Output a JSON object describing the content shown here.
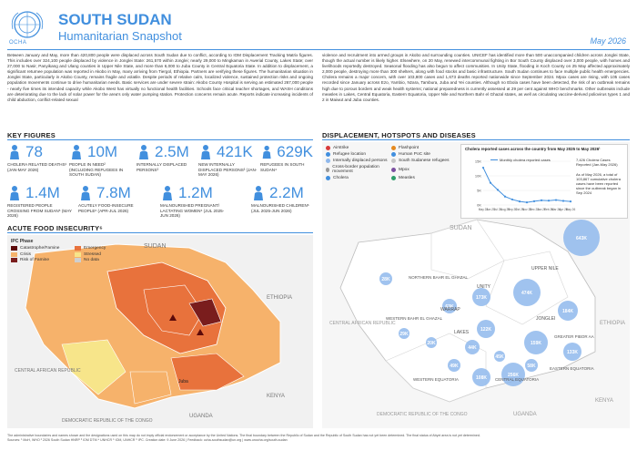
{
  "header": {
    "org": "OCHA",
    "title": "SOUTH SUDAN",
    "subtitle": "Humanitarian Snapshot",
    "date": "May 2026"
  },
  "intro": {
    "left": "Between January and May, more than 420,800 people were displaced across South Sudan due to conflict, according to IOM Displacement Tracking Matrix figures. This includes over 324,100 people displaced by violence in Jonglei State: 261,570 within Jonglei; nearly 29,000 to Mingkaman in Awerial County, Lakes State; over 27,000 to Nasir, Panyikang and Ulang counties in Upper Nile State, and more than 6,000 to Juba County in Central Equatoria State. In addition to displacement, a significant returnee population was reported in Akobo in May, many arriving from Tiergol, Ethiopia. Partners are verifying these figures. The humanitarian situation in Jonglei State, particularly in Akobo County, remains fragile and volatile. Despite periods of relative calm, localized violence, sustained protection risks and ongoing population movements continue to drive humanitarian needs. Basic services are under severe strain: Akobo County Hospital is serving an estimated 267,000 people - nearly five times its intended capacity while Akobo West has virtually no functional health facilities. Schools face critical teacher shortages, and WASH conditions are deteriorating due to the lack of solar power for the area's only water pumping station. Protection concerns remain acute. Reports indicate increasing incidents of child abduction, conflict-related sexual",
    "right": "violence and recruitment into armed groups in Akobo and surrounding counties. UNICEF has identified more than 500 unaccompanied children across Jonglei State, though the actual number is likely higher. Elsewhere, on 20 May, renewed intercommunal fighting in Bor South County displaced over 3,000 people, with homes and livelihoods reportedly destroyed. Seasonal flooding has also begun to affect communities. In Unity State, flooding in Koch County on 25 May affected approximately 2,000 people, destroying more than 300 shelters, along with food stocks and basic infrastructure. South Sudan continues to face multiple public health emergencies. Cholera remains a major concern, with over 103,800 cases and 1,673 deaths reported nationwide since September 2024. Mpox cases are rising, with 105 cases recorded since January across Ezo, Yambio, Nzara, Tambura, Juba and Yei counties. Although no Ebola cases have been detected, the risk of an outbreak remains high due to porous borders and weak health systems; national preparedness is currently assessed at 29 per cent against WHO benchmarks. Other outbreaks include measles in Lakes, Central Equatoria, Eastern Equatoria, Upper Nile and Northern Bahr el Ghazal states, as well as circulating vaccine-derived poliovirus types 1 and 2 in Maiwut and Juba counties."
  },
  "key_figures": {
    "title": "KEY FIGURES",
    "items": [
      {
        "value": "78",
        "label": "CHOLERA RELATED DEATHS¹ (Jan-May 2026)",
        "icon": "cholera-icon"
      },
      {
        "value": "10M",
        "label": "PEOPLE IN NEED² (including refugees in South Sudan)",
        "icon": "people-icon"
      },
      {
        "value": "2.5M",
        "label": "INTERNALLY DISPLACED PERSONS³",
        "icon": "idp-icon"
      },
      {
        "value": "421K",
        "label": "NEW INTERNALLY DISPLACED PERSONS³ (Jan-May 2026)",
        "icon": "new-idp-icon"
      },
      {
        "value": "629K",
        "label": "REFUGEES IN SOUTH SUDAN⁴",
        "icon": "refugee-icon"
      },
      {
        "value": "1.4M",
        "label": "REGISTERED PEOPLE CROSSING FROM SUDAN⁵ (May 2026)",
        "icon": "crossing-icon"
      },
      {
        "value": "7.8M",
        "label": "ACUTELY FOOD-INSECURE PEOPLE⁶ (Apr-Jul 2026)",
        "icon": "food-icon"
      },
      {
        "value": "1.2M",
        "label": "MALNOURISHED PREGNANT/ LACTATING WOMEN⁶ (Jul 2025-Jun 2026)",
        "icon": "pregnant-icon"
      },
      {
        "value": "2.2M",
        "label": "MALNOURISHED CHILDREN⁶ (Jul 2025-Jun 2026)",
        "icon": "child-icon"
      }
    ]
  },
  "food_insecurity": {
    "title": "ACUTE FOOD INSECURITY⁶",
    "legend_title": "IPC Phase",
    "legend": [
      {
        "label": "Catastrophe/Famine",
        "color": "#5c0a0a"
      },
      {
        "label": "Emergency",
        "color": "#e8723c"
      },
      {
        "label": "Crisis",
        "color": "#f6b26b"
      },
      {
        "label": "Stressed",
        "color": "#f7e58a"
      },
      {
        "label": "Risk of Famine",
        "color": "#7a1d1d"
      },
      {
        "label": "No data",
        "color": "#cfcfcf"
      }
    ],
    "places": [
      "SUDAN",
      "ETHIOPIA",
      "KENYA",
      "UGANDA",
      "CENTRAL AFRICAN REPUBLIC",
      "DEMOCRATIC REPUBLIC OF THE CONGO",
      "Juba"
    ]
  },
  "displacement": {
    "title": "DISPLACEMENT, HOTSPOTS AND DISEASES",
    "legend": [
      {
        "label": "Airstrike",
        "color": "#d93b3b"
      },
      {
        "label": "Flashpoint",
        "color": "#e58a1f"
      },
      {
        "label": "Refugee location",
        "color": "#418fde"
      },
      {
        "label": "Human PoC site",
        "color": "#418fde"
      },
      {
        "label": "Internally displaced persons",
        "color": "#8fb8ec"
      },
      {
        "label": "South Sudanese refugees",
        "color": "#c7c7c7"
      },
      {
        "label": "Cross-border population movement",
        "color": "#999999"
      },
      {
        "label": "Mpox",
        "color": "#7b4fa0"
      },
      {
        "label": "Cholera",
        "color": "#418fde"
      },
      {
        "label": "Measles",
        "color": "#2e9e6a"
      }
    ],
    "bubbles": [
      "643K",
      "474K",
      "173K",
      "159K",
      "122K",
      "184K",
      "63K",
      "28K",
      "44K",
      "108K",
      "256K",
      "49K",
      "20K",
      "133K",
      "29K",
      "58K",
      "45K"
    ],
    "places": [
      "SUDAN",
      "UPPER NILE",
      "UNITY",
      "JONGLEI",
      "LAKES",
      "WARRAP",
      "NORTHERN BAHR EL GHAZAL",
      "WESTERN BAHR EL GHAZAL",
      "WESTERN EQUATORIA",
      "CENTRAL EQUATORIA",
      "EASTERN EQUATORIA",
      "ETHIOPIA",
      "KENYA",
      "UGANDA",
      "CENTRAL AFRICAN REPUBLIC",
      "DEMOCRATIC REPUBLIC OF THE CONGO",
      "GREATER PIBOR AA"
    ],
    "chart_title": "Cholera reported cases across the country from May 2025 to May 2026¹",
    "chart_legend": "Monthly cholera reported cases",
    "chart_note1": "7,426 Cholera Cases Reported (Jan-May 2026)",
    "chart_note2": "As of May 2026, a total of 103,867 cumulative cholera cases have been reported since the outbreak began in Sep 2024"
  },
  "chart_data": {
    "type": "line",
    "categories": [
      "May 25",
      "Jun 25",
      "Jul 25",
      "Aug 25",
      "Sep 25",
      "Oct 25",
      "Nov 25",
      "Dec 25",
      "Jan 26",
      "Feb 26",
      "Mar 26",
      "Apr 26",
      "May 26"
    ],
    "series": [
      {
        "name": "Monthly cholera reported cases",
        "values": [
          12800,
          7600,
          5200,
          2900,
          1900,
          1200,
          900,
          1300,
          1600,
          1500,
          1700,
          1400,
          1200
        ]
      }
    ],
    "ylim": [
      0,
      15000
    ],
    "yticks": [
      "15K",
      "10K",
      "5K",
      "0K"
    ]
  },
  "footer": {
    "text": "The administrative boundaries and names shown and the designations used on this map do not imply official endorsement or acceptance by the United Nations. The final boundary between the Republic of Sudan and the Republic of South Sudan has not yet been determined. The final status of Abyei area is not yet determined.",
    "sources": "Sources: ¹ MoH, WHO ² 2026 South Sudan HNRP ³ IOM DTM ⁴ UNHCR ⁵ IOM, UNHCR ⁶ IPC. Creation date: 9 June 2026 | Feedback: ocha-southsudan@un.org | www.unocha.org/south-sudan"
  }
}
